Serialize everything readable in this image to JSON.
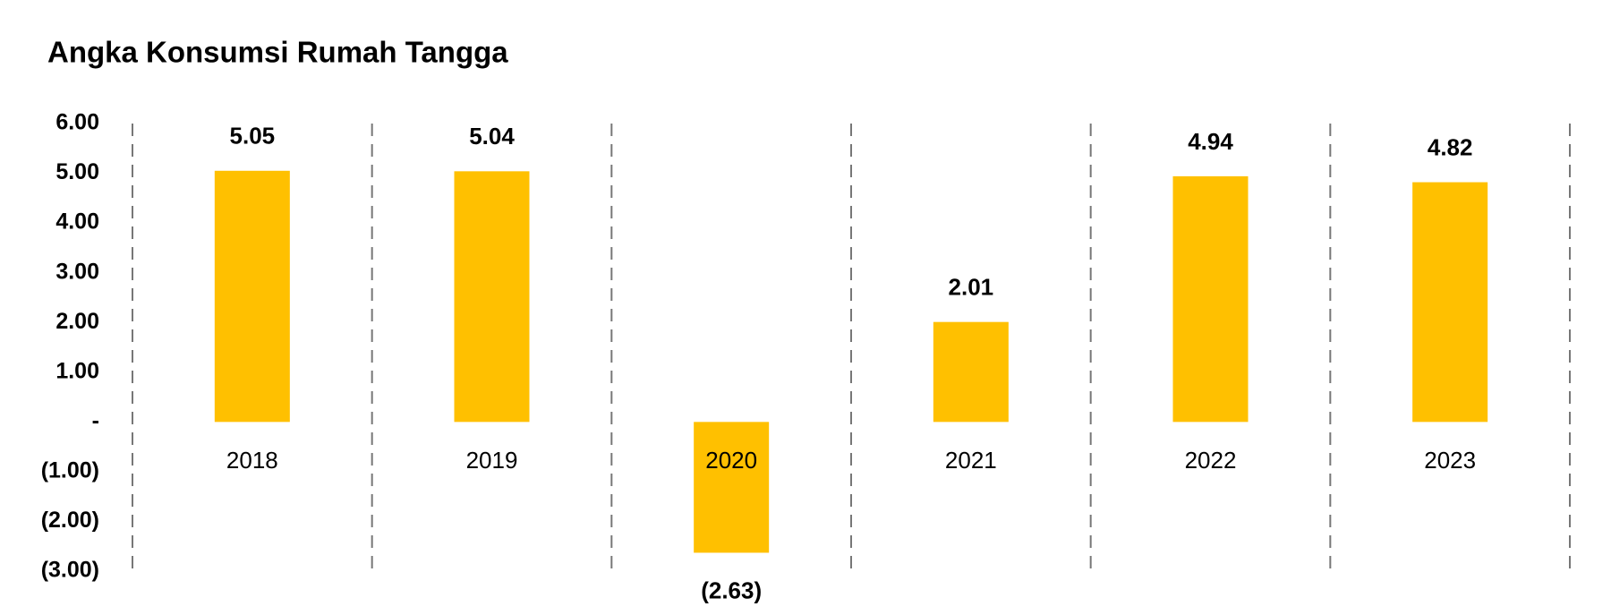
{
  "chart_data": {
    "type": "bar",
    "title": "Angka Konsumsi Rumah Tangga",
    "categories": [
      "2018",
      "2019",
      "2020",
      "2021",
      "2022",
      "2023"
    ],
    "values": [
      5.05,
      5.04,
      -2.63,
      2.01,
      4.94,
      4.82
    ],
    "value_labels": [
      "5.05",
      "5.04",
      "(2.63)",
      "2.01",
      "4.94",
      "4.82"
    ],
    "color": "#FFC000",
    "ylim": [
      -3,
      6
    ],
    "yticks": [
      {
        "value": 6,
        "label": "6.00"
      },
      {
        "value": 5,
        "label": "5.00"
      },
      {
        "value": 4,
        "label": "4.00"
      },
      {
        "value": 3,
        "label": "3.00"
      },
      {
        "value": 2,
        "label": "2.00"
      },
      {
        "value": 1,
        "label": "1.00"
      },
      {
        "value": 0,
        "label": "-"
      },
      {
        "value": -1,
        "label": "(1.00)"
      },
      {
        "value": -2,
        "label": "(2.00)"
      },
      {
        "value": -3,
        "label": "(3.00)"
      }
    ],
    "grid": false
  }
}
